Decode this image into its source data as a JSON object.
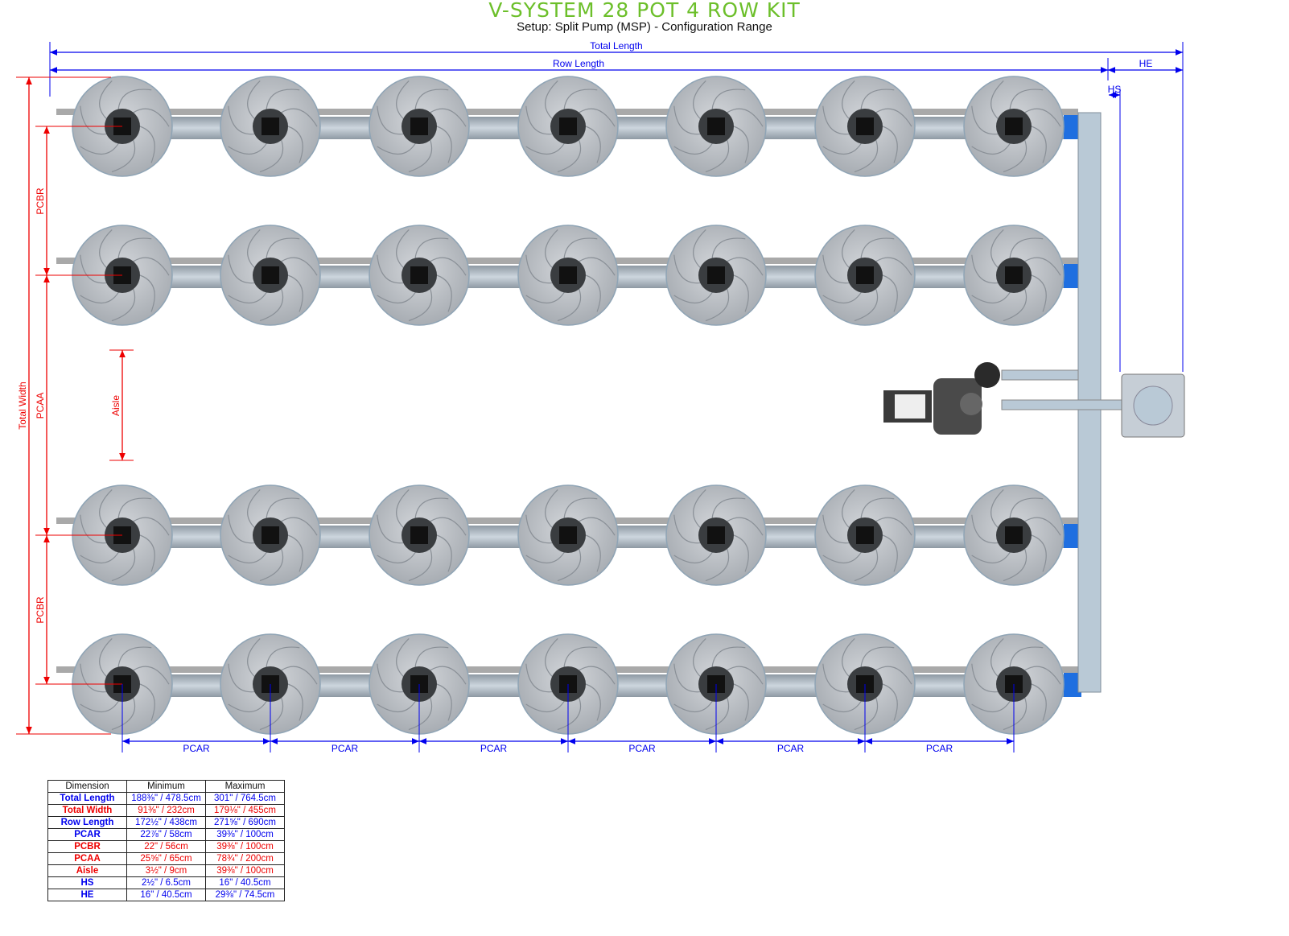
{
  "header": {
    "title": "V-SYSTEM 28 POT 4 ROW KIT",
    "subtitle": "Setup: Split Pump (MSP) - Configuration Range"
  },
  "colors": {
    "title": "#6cbf2a",
    "length_dims": "#0000ee",
    "width_dims": "#ee0000",
    "pot": "#b8bcc2",
    "pipe": "#b9c9d6",
    "fitting": "#1f6fe0"
  },
  "diagram": {
    "rows": 4,
    "pots_per_row": 7,
    "labels": {
      "total_length": "Total Length",
      "row_length": "Row Length",
      "he": "HE",
      "hs": "HS",
      "total_width": "Total Width",
      "pcbr": "PCBR",
      "pcaa": "PCAA",
      "aisle": "Aisle",
      "pcar": "PCAR"
    }
  },
  "table": {
    "headers": [
      "Dimension",
      "Minimum",
      "Maximum"
    ],
    "rows": [
      {
        "name": "Total Length",
        "min": "188⅜\" / 478.5cm",
        "max": "301\" / 764.5cm",
        "color": "#0000ee"
      },
      {
        "name": "Total Width",
        "min": "91⅜\" / 232cm",
        "max": "179⅛\" / 455cm",
        "color": "#ee0000"
      },
      {
        "name": "Row Length",
        "min": "172½\" / 438cm",
        "max": "271⅝\" / 690cm",
        "color": "#0000ee"
      },
      {
        "name": "PCAR",
        "min": "22⅞\" / 58cm",
        "max": "39⅜\" / 100cm",
        "color": "#0000ee"
      },
      {
        "name": "PCBR",
        "min": "22\" / 56cm",
        "max": "39⅜\" / 100cm",
        "color": "#ee0000"
      },
      {
        "name": "PCAA",
        "min": "25⅝\" / 65cm",
        "max": "78¾\" / 200cm",
        "color": "#ee0000"
      },
      {
        "name": "Aisle",
        "min": "3½\" / 9cm",
        "max": "39⅜\" / 100cm",
        "color": "#ee0000"
      },
      {
        "name": "HS",
        "min": "2½\" / 6.5cm",
        "max": "16\" / 40.5cm",
        "color": "#0000ee"
      },
      {
        "name": "HE",
        "min": "16\" / 40.5cm",
        "max": "29⅜\" / 74.5cm",
        "color": "#0000ee"
      }
    ]
  }
}
